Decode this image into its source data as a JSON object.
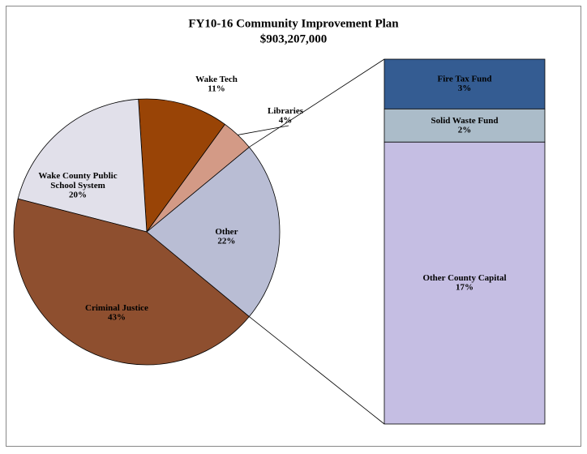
{
  "chart_data": {
    "type": "pie",
    "title": "FY10-16 Community Improvement Plan",
    "subtitle": "$903,207,000",
    "categories": [
      "Other",
      "Libraries",
      "Wake Tech",
      "Wake County Public School System",
      "Criminal Justice"
    ],
    "values": [
      22,
      4,
      11,
      20,
      43
    ],
    "value_labels": [
      "22%",
      "4%",
      "11%",
      "20%",
      "43%"
    ],
    "colors": [
      "#b9bdd4",
      "#d39a86",
      "#994406",
      "#e1e0ea",
      "#8e4f2f"
    ],
    "breakdown": {
      "categories": [
        "Fire Tax Fund",
        "Solid Waste Fund",
        "Other County Capital"
      ],
      "values": [
        3,
        2,
        17
      ],
      "value_labels": [
        "3%",
        "2%",
        "17%"
      ],
      "colors": [
        "#345c92",
        "#abbcc9",
        "#c5bee3"
      ]
    }
  }
}
